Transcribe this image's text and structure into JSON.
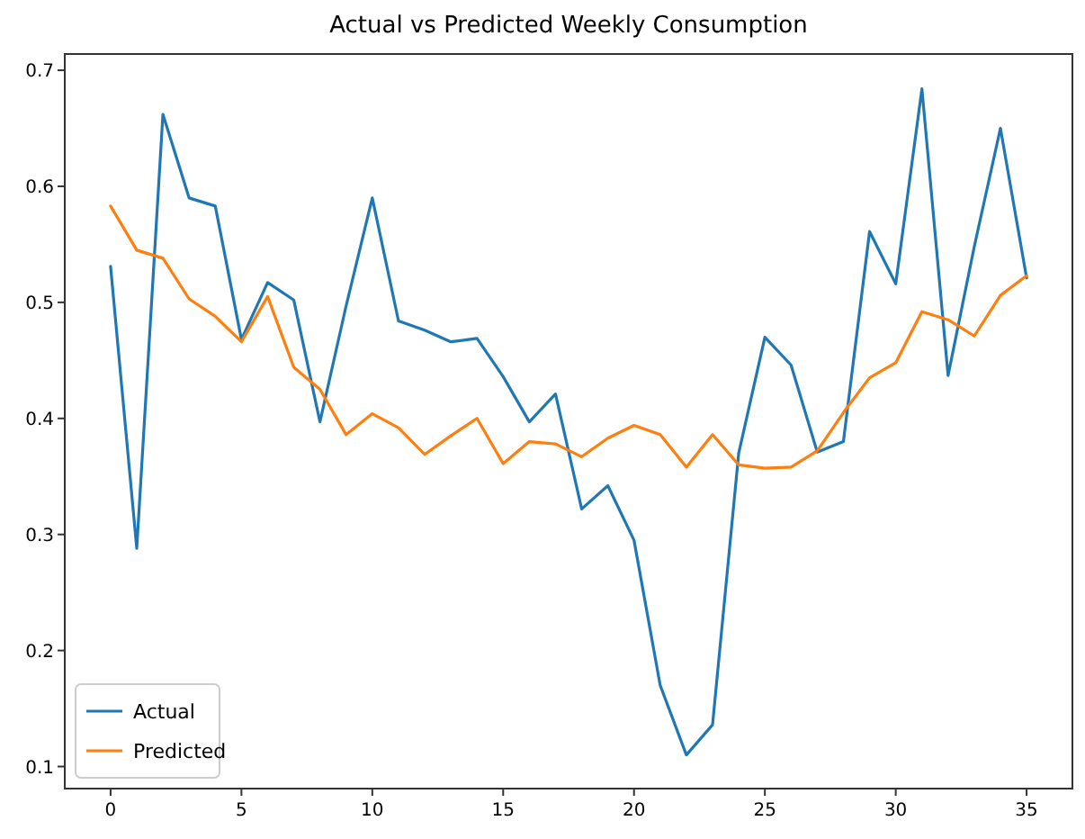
{
  "chart_data": {
    "type": "line",
    "title": "Actual vs Predicted Weekly Consumption",
    "x": [
      0,
      1,
      2,
      3,
      4,
      5,
      6,
      7,
      8,
      9,
      10,
      11,
      12,
      13,
      14,
      15,
      16,
      17,
      18,
      19,
      20,
      21,
      22,
      23,
      24,
      25,
      26,
      27,
      28,
      29,
      30,
      31,
      32,
      33,
      34,
      35
    ],
    "series": [
      {
        "name": "Actual",
        "color": "#1f77b4",
        "values": [
          0.531,
          0.288,
          0.662,
          0.59,
          0.583,
          0.468,
          0.517,
          0.502,
          0.397,
          0.497,
          0.59,
          0.484,
          0.476,
          0.466,
          0.469,
          0.436,
          0.397,
          0.421,
          0.322,
          0.342,
          0.295,
          0.17,
          0.11,
          0.136,
          0.37,
          0.47,
          0.446,
          0.371,
          0.38,
          0.561,
          0.516,
          0.684,
          0.437,
          0.548,
          0.65,
          0.521
        ]
      },
      {
        "name": "Predicted",
        "color": "#ff7f0e",
        "values": [
          0.583,
          0.545,
          0.538,
          0.503,
          0.488,
          0.466,
          0.505,
          0.444,
          0.425,
          0.386,
          0.404,
          0.392,
          0.369,
          0.385,
          0.4,
          0.361,
          0.38,
          0.378,
          0.367,
          0.383,
          0.394,
          0.386,
          0.358,
          0.386,
          0.36,
          0.357,
          0.358,
          0.372,
          0.405,
          0.435,
          0.448,
          0.492,
          0.485,
          0.471,
          0.506,
          0.523
        ]
      }
    ],
    "xlim": [
      -1.75,
      36.75
    ],
    "xticks": [
      0,
      5,
      10,
      15,
      20,
      25,
      30,
      35
    ],
    "ylim": [
      0.081,
      0.714
    ],
    "yticks": [
      0.1,
      0.2,
      0.3,
      0.4,
      0.5,
      0.6,
      0.7
    ],
    "grid": false,
    "legend": "bottom left",
    "marker": "none",
    "line_style": "solid"
  }
}
